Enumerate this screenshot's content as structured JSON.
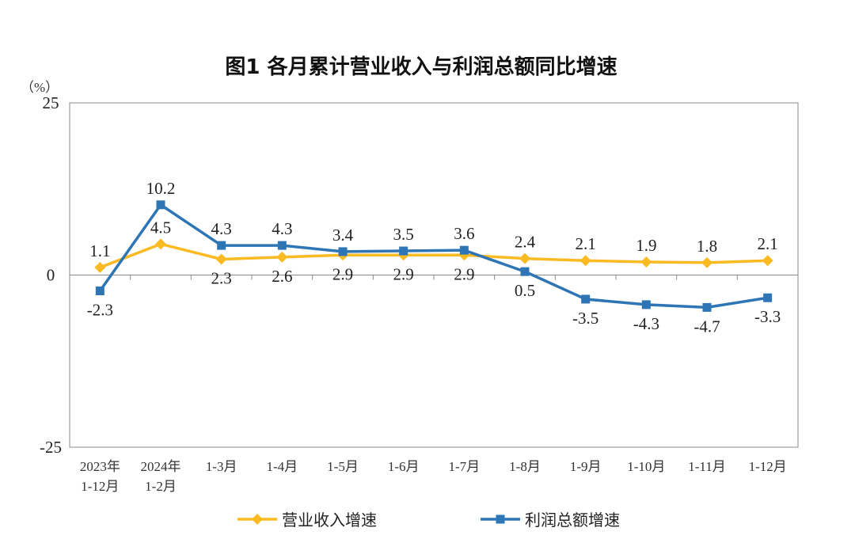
{
  "chart_data": {
    "type": "line",
    "title": "图1  各月累计营业收入与利润总额同比增速",
    "ylabel": "（%）",
    "ylim": [
      -25,
      25
    ],
    "yticks": [
      "25",
      "0",
      "-25"
    ],
    "yticks_values": [
      25,
      0,
      -25
    ],
    "grid": false,
    "legend_placement": "bottom",
    "categories": [
      [
        "2023年",
        "1-12月"
      ],
      [
        "2024年",
        "1-2月"
      ],
      [
        "1-3月"
      ],
      [
        "1-4月"
      ],
      [
        "1-5月"
      ],
      [
        "1-6月"
      ],
      [
        "1-7月"
      ],
      [
        "1-8月"
      ],
      [
        "1-9月"
      ],
      [
        "1-10月"
      ],
      [
        "1-11月"
      ],
      [
        "1-12月"
      ]
    ],
    "series": [
      {
        "name": "营业收入增速",
        "color": "#FBBA22",
        "marker": "diamond",
        "values": [
          1.1,
          4.5,
          2.3,
          2.6,
          2.9,
          2.9,
          2.9,
          2.4,
          2.1,
          1.9,
          1.8,
          2.1
        ],
        "labels": [
          "1.1",
          "4.5",
          "2.3",
          "2.6",
          "2.9",
          "2.9",
          "2.9",
          "2.4",
          "2.1",
          "1.9",
          "1.8",
          "2.1"
        ]
      },
      {
        "name": "利润总额增速",
        "color": "#2E75B6",
        "marker": "square",
        "values": [
          -2.3,
          10.2,
          4.3,
          4.3,
          3.4,
          3.5,
          3.6,
          0.5,
          -3.5,
          -4.3,
          -4.7,
          -3.3
        ],
        "labels": [
          "-2.3",
          "10.2",
          "4.3",
          "4.3",
          "3.4",
          "3.5",
          "3.6",
          "0.5",
          "-3.5",
          "-4.3",
          "-4.7",
          "-3.3"
        ]
      }
    ]
  }
}
